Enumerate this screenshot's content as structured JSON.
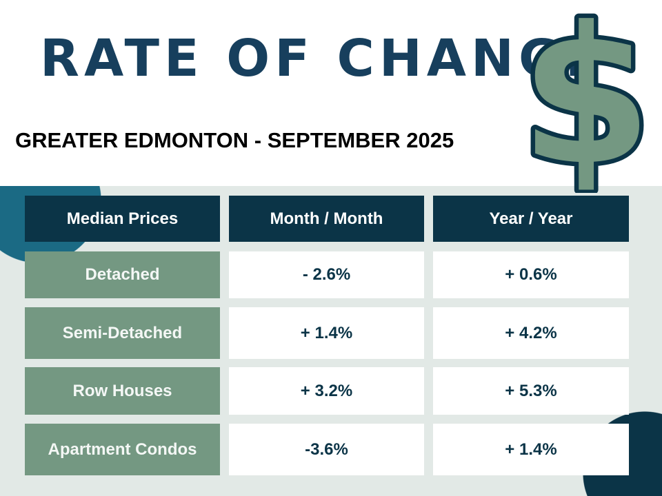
{
  "title": "RATE OF CHANGE",
  "subtitle": "GREATER EDMONTON - SEPTEMBER 2025",
  "icon": "dollar-sign-icon",
  "colors": {
    "navy": "#0b3447",
    "green": "#749882",
    "teal": "#1b6a84",
    "background": "#e2e9e6"
  },
  "table": {
    "headers": [
      "Median Prices",
      "Month / Month",
      "Year / Year"
    ],
    "rows": [
      {
        "type": "Detached",
        "month": "- 2.6%",
        "year": "+ 0.6%"
      },
      {
        "type": "Semi-Detached",
        "month": "+ 1.4%",
        "year": "+ 4.2%"
      },
      {
        "type": "Row Houses",
        "month": "+ 3.2%",
        "year": "+ 5.3%"
      },
      {
        "type": "Apartment Condos",
        "month": "-3.6%",
        "year": "+ 1.4%"
      }
    ]
  }
}
